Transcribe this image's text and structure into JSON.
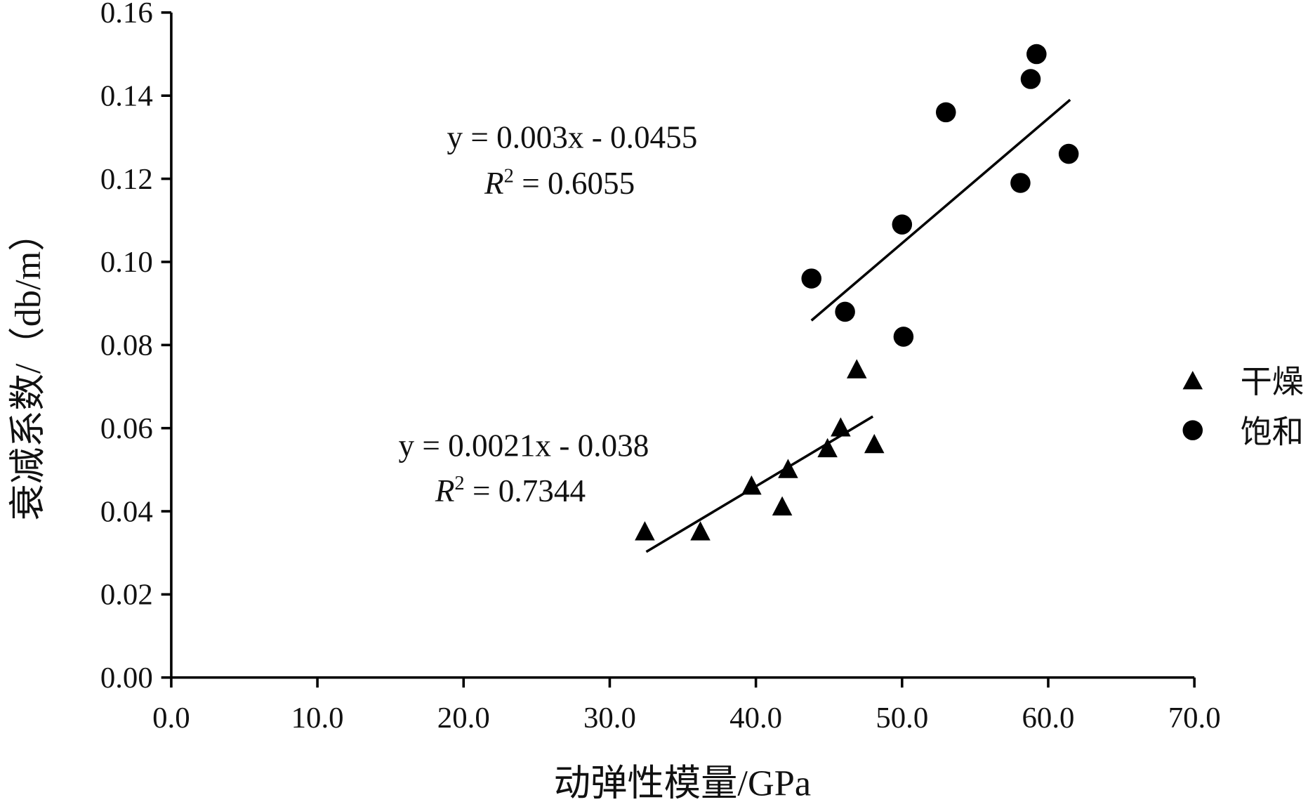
{
  "chart_data": {
    "type": "scatter",
    "title": "",
    "xlabel": "动弹性模量/GPa",
    "ylabel": "衰减系数/（db/m）",
    "xlim": [
      0,
      70
    ],
    "ylim": [
      0,
      0.16
    ],
    "xticks": [
      "0.0",
      "10.0",
      "20.0",
      "30.0",
      "40.0",
      "50.0",
      "60.0",
      "70.0"
    ],
    "yticks": [
      "0.00",
      "0.02",
      "0.04",
      "0.06",
      "0.08",
      "0.10",
      "0.12",
      "0.14",
      "0.16"
    ],
    "grid": false,
    "legend_position": "right",
    "series": [
      {
        "name": "干燥",
        "marker": "triangle",
        "color": "#000000",
        "x": [
          32.4,
          36.2,
          39.7,
          41.8,
          42.2,
          44.9,
          45.8,
          46.9,
          48.1
        ],
        "y": [
          0.035,
          0.035,
          0.046,
          0.041,
          0.05,
          0.055,
          0.06,
          0.074,
          0.056
        ],
        "fit": {
          "slope": 0.0021,
          "intercept": -0.038,
          "x_range": [
            32.5,
            48.0
          ],
          "equation": "y = 0.0021x - 0.038",
          "r2_label": "R",
          "r2_value": " = 0.7344"
        }
      },
      {
        "name": "饱和",
        "marker": "circle",
        "color": "#000000",
        "x": [
          43.8,
          46.1,
          50.1,
          50.0,
          53.0,
          58.1,
          58.8,
          59.2,
          61.4
        ],
        "y": [
          0.096,
          0.088,
          0.082,
          0.109,
          0.136,
          0.119,
          0.144,
          0.15,
          0.126
        ],
        "fit": {
          "slope": 0.003,
          "intercept": -0.0455,
          "x_range": [
            43.8,
            61.5
          ],
          "equation": "y = 0.003x - 0.0455",
          "r2_label": "R",
          "r2_value": " = 0.6055"
        }
      }
    ]
  }
}
